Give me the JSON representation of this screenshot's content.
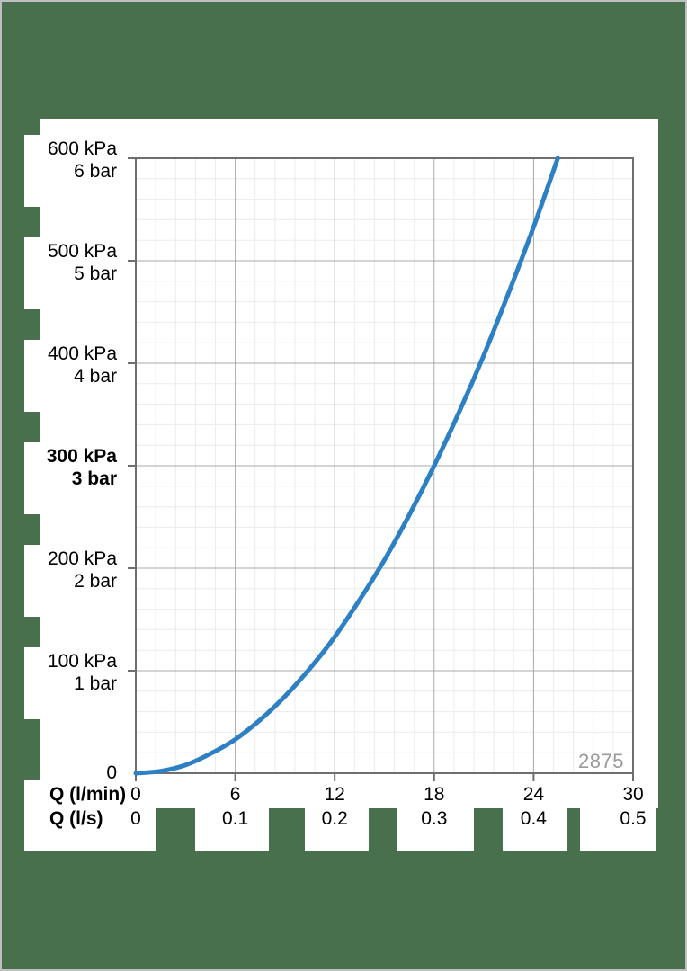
{
  "page": {
    "background_color": "#49704d",
    "frame_color": "#bfbfbf",
    "panel_color": "#ffffff"
  },
  "chart_data": {
    "type": "line",
    "title": "",
    "xlabel_primary": "Q (l/min)",
    "xlabel_secondary": "Q (l/s)",
    "ylabel": "",
    "xlim_lmin": [
      0,
      30
    ],
    "ylim_kpa": [
      0,
      600
    ],
    "grid": {
      "on": true,
      "minor_step_kpa": 20,
      "minor_step_lmin": 1.2,
      "major_step_kpa": 100,
      "major_step_lmin": 6
    },
    "y_ticks": [
      {
        "value_kpa": 600,
        "kpa": "600 kPa",
        "bar": "6 bar",
        "bold": false
      },
      {
        "value_kpa": 500,
        "kpa": "500 kPa",
        "bar": "5 bar",
        "bold": false
      },
      {
        "value_kpa": 400,
        "kpa": "400 kPa",
        "bar": "4 bar",
        "bold": false
      },
      {
        "value_kpa": 300,
        "kpa": "300 kPa",
        "bar": "3 bar",
        "bold": true
      },
      {
        "value_kpa": 200,
        "kpa": "200 kPa",
        "bar": "2 bar",
        "bold": false
      },
      {
        "value_kpa": 100,
        "kpa": "100 kPa",
        "bar": "1 bar",
        "bold": false
      },
      {
        "value_kpa": 0,
        "kpa": "0",
        "bar": "",
        "bold": false
      }
    ],
    "x_ticks": [
      {
        "value_lmin": 0,
        "lmin": "0",
        "ls": "0"
      },
      {
        "value_lmin": 6,
        "lmin": "6",
        "ls": "0.1"
      },
      {
        "value_lmin": 12,
        "lmin": "12",
        "ls": "0.2"
      },
      {
        "value_lmin": 18,
        "lmin": "18",
        "ls": "0.3"
      },
      {
        "value_lmin": 24,
        "lmin": "24",
        "ls": "0.4"
      },
      {
        "value_lmin": 30,
        "lmin": "30",
        "ls": "0.5"
      }
    ],
    "series": [
      {
        "name": "2875",
        "color": "#2e80c4",
        "label_color": "#989a9c",
        "points_lmin_kpa": [
          [
            0,
            0
          ],
          [
            1.5,
            2
          ],
          [
            3,
            8
          ],
          [
            4.5,
            19
          ],
          [
            6,
            33
          ],
          [
            7.5,
            52
          ],
          [
            9,
            75
          ],
          [
            10.5,
            102
          ],
          [
            12,
            133
          ],
          [
            13.5,
            169
          ],
          [
            15,
            208
          ],
          [
            16.5,
            252
          ],
          [
            18,
            300
          ],
          [
            19.5,
            352
          ],
          [
            21,
            408
          ],
          [
            22.5,
            469
          ],
          [
            24,
            533
          ],
          [
            25.46,
            600
          ]
        ]
      }
    ],
    "colors": {
      "grid_minor": "#ececec",
      "grid_major": "#a9a9a9",
      "frame": "#6e6e6e"
    }
  }
}
